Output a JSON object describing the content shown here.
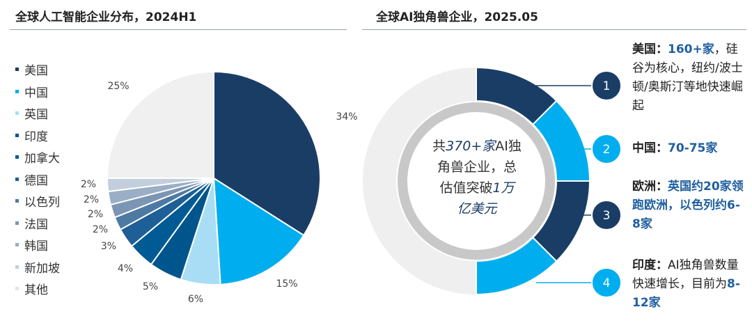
{
  "left": {
    "title": "全球人工智能企业分布，2024H1"
  },
  "right": {
    "title": "全球AI独角兽企业，2025.05",
    "center": {
      "l1a": "共",
      "l1b": "370+家",
      "l1c": "AI独",
      "l2": "角兽企业，总",
      "l3": "估值突破",
      "l3b": "1万",
      "l4": "亿美元"
    },
    "notes": [
      {
        "num": "1",
        "head": "美国：",
        "hl": "160+家",
        "rest": "，硅谷为核心，纽约/波士顿/奥斯汀等地快速崛起"
      },
      {
        "num": "2",
        "head": "中国：",
        "hl": "70-75家",
        "rest": ""
      },
      {
        "num": "3",
        "head": "欧洲：",
        "hl": "英国约20家领跑欧洲，以色列约6-8家",
        "rest": ""
      },
      {
        "num": "4",
        "head": "印度：",
        "hl": "",
        "rest": "AI独角兽数量快速增长，目前为",
        "hl2": "8-12家"
      }
    ]
  },
  "colors": {
    "dark": "#1a3d66",
    "bright": "#00aeef",
    "light": "#a8ddf5",
    "mid": "#00558c",
    "other": "#f0f0f0"
  },
  "chart_data": {
    "type": "pie",
    "categories": [
      "美国",
      "中国",
      "英国",
      "印度",
      "加拿大",
      "德国",
      "以色列",
      "法国",
      "韩国",
      "新加坡",
      "其他"
    ],
    "values": [
      34,
      15,
      6,
      5,
      4,
      3,
      2,
      2,
      2,
      2,
      25
    ],
    "labels": [
      "34%",
      "15%",
      "6%",
      "5%",
      "4%",
      "3%",
      "2%",
      "2%",
      "2%",
      "2%",
      "25%"
    ],
    "colors": [
      "#1a3d66",
      "#00aeef",
      "#a8ddf5",
      "#00558c",
      "#005a94",
      "#1d5f96",
      "#4d7aa3",
      "#7c95b3",
      "#9aaec5",
      "#c2cedb",
      "#f0f0f0"
    ],
    "legend_position": "left"
  }
}
